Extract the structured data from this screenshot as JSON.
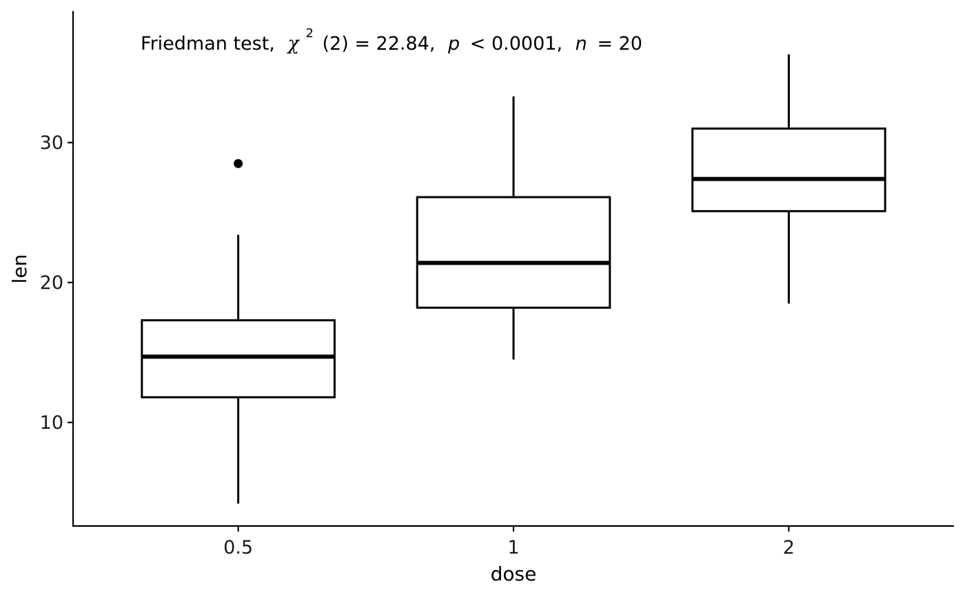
{
  "chart_data": {
    "type": "box",
    "title": "",
    "xlabel": "dose",
    "ylabel": "len",
    "categories": [
      "0.5",
      "1",
      "2"
    ],
    "boxes": [
      {
        "category": "0.5",
        "whisker_low": 4.2,
        "q1": 11.8,
        "median": 14.7,
        "q3": 17.3,
        "whisker_high": 23.4,
        "outliers": [
          28.5
        ]
      },
      {
        "category": "1",
        "whisker_low": 14.5,
        "q1": 18.2,
        "median": 21.4,
        "q3": 26.1,
        "whisker_high": 33.3,
        "outliers": []
      },
      {
        "category": "2",
        "whisker_low": 18.5,
        "q1": 25.1,
        "median": 27.4,
        "q3": 31.0,
        "whisker_high": 36.3,
        "outliers": []
      }
    ],
    "ylim": [
      2.6,
      39.4
    ],
    "yticks": [
      10,
      20,
      30
    ],
    "grid": false,
    "legend": "none",
    "annotation": {
      "test": "Friedman test,",
      "stat_symbol": "χ",
      "stat_sup": "2",
      "stat_rest": "(2) = 22.84,",
      "p_symbol": "p",
      "p_rest": "< 0.0001,",
      "n_symbol": "n",
      "n_rest": "= 20"
    }
  }
}
